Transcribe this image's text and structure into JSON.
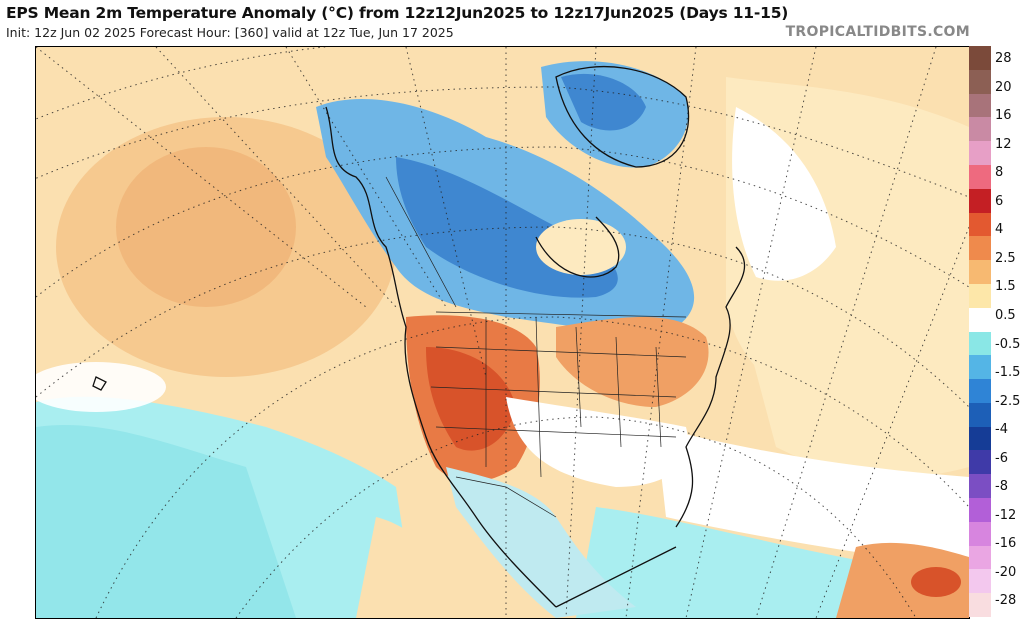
{
  "header": {
    "title": "EPS Mean 2m Temperature Anomaly (°C) from 12z12Jun2025 to 12z17Jun2025 (Days 11-15)",
    "subtitle": "Init: 12z Jun 02 2025   Forecast Hour: [360]   valid at 12z Tue, Jun 17 2025",
    "brand": "TROPICALTIDBITS.COM"
  },
  "colorbar": {
    "labels": [
      "28",
      "20",
      "16",
      "12",
      "8",
      "6",
      "4",
      "2.5",
      "1.5",
      "0.5",
      "-0.5",
      "-1.5",
      "-2.5",
      "-4",
      "-6",
      "-8",
      "-12",
      "-16",
      "-20",
      "-28"
    ],
    "colors": [
      "#7b4a3a",
      "#8c5f54",
      "#a8737a",
      "#c98aa4",
      "#e79fc6",
      "#ee6a7f",
      "#c41f24",
      "#e35930",
      "#ef8a4c",
      "#f7b971",
      "#fde7a9",
      "#ffffff",
      "#8ae7e6",
      "#54b5e6",
      "#2f84d6",
      "#1d5fb7",
      "#153c96",
      "#3f3aa8",
      "#7b4ec3",
      "#b25fd8",
      "#d785df",
      "#eaa6e3",
      "#f3c8ee",
      "#f9dde0"
    ]
  },
  "map": {
    "features": [
      "ocean-anomaly-field",
      "continent-anomaly-field",
      "coastlines",
      "political-borders",
      "lat-lon-graticule"
    ]
  }
}
